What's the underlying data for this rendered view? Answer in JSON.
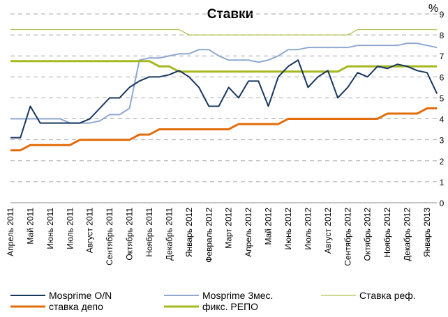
{
  "chart_data": {
    "type": "line",
    "title": "Ставки",
    "y_axis_label": "%",
    "categories": [
      "Апрель 2011",
      null,
      "Май 2011",
      null,
      "Июнь 2011",
      null,
      "Июль 2011",
      null,
      "Август 2011",
      null,
      "Сентябрь 2011",
      null,
      "Октябрь 2011",
      null,
      "Ноябрь 2011",
      null,
      "Декабрь 2011",
      null,
      "Январь 2012",
      null,
      "Февраль 2012",
      null,
      "Март 2012",
      null,
      "Апрель 2012",
      null,
      "Май 2012",
      null,
      "Июнь 2012",
      null,
      "Июль 2012",
      null,
      "Август 2012",
      null,
      "Сентябрь 2012",
      null,
      "Октябрь 2012",
      null,
      "Ноябрь 2012",
      null,
      "Декабрь 2012",
      null,
      "Январь 2013",
      null
    ],
    "series": [
      {
        "name": "Mosprime O/N",
        "color": "#17375e",
        "width": 2,
        "values": [
          3.1,
          3.1,
          4.6,
          3.8,
          3.8,
          3.8,
          3.8,
          3.8,
          4,
          4.5,
          5,
          5,
          5.5,
          5.8,
          6,
          6,
          6.1,
          6.3,
          6,
          5.5,
          4.6,
          4.6,
          5.5,
          5,
          5.8,
          5.8,
          4.6,
          6,
          6.5,
          6.8,
          5.5,
          6,
          6.3,
          5,
          5.5,
          6.2,
          6,
          6.5,
          6.4,
          6.6,
          6.5,
          6.3,
          6.2,
          5.2
        ]
      },
      {
        "name": "Mosprime 3мес.",
        "color": "#8da9ce",
        "width": 2,
        "values": [
          4,
          4,
          4,
          4,
          4,
          4,
          3.8,
          3.8,
          3.8,
          3.9,
          4.2,
          4.2,
          4.5,
          6.8,
          6.9,
          6.9,
          7,
          7.1,
          7.1,
          7.3,
          7.3,
          7,
          6.8,
          6.8,
          6.8,
          6.7,
          6.8,
          7,
          7.3,
          7.3,
          7.4,
          7.4,
          7.4,
          7.4,
          7.4,
          7.5,
          7.5,
          7.5,
          7.5,
          7.5,
          7.6,
          7.6,
          7.5,
          7.4
        ]
      },
      {
        "name": "Ставка реф.",
        "color": "#9ab623",
        "width": 1,
        "values": [
          8.25,
          8.25,
          8.25,
          8.25,
          8.25,
          8.25,
          8.25,
          8.25,
          8.25,
          8.25,
          8.25,
          8.25,
          8.25,
          8.25,
          8.25,
          8.25,
          8.25,
          8.25,
          8,
          8,
          8,
          8,
          8,
          8,
          8,
          8,
          8,
          8,
          8,
          8,
          8,
          8,
          8,
          8,
          8,
          8.25,
          8.25,
          8.25,
          8.25,
          8.25,
          8.25,
          8.25,
          8.25,
          8.25
        ]
      },
      {
        "name": "ставка депо",
        "color": "#e36c0a",
        "width": 3,
        "values": [
          2.5,
          2.5,
          2.75,
          2.75,
          2.75,
          2.75,
          2.75,
          3,
          3,
          3,
          3,
          3,
          3,
          3.25,
          3.25,
          3.5,
          3.5,
          3.5,
          3.5,
          3.5,
          3.5,
          3.5,
          3.5,
          3.75,
          3.75,
          3.75,
          3.75,
          3.75,
          4,
          4,
          4,
          4,
          4,
          4,
          4,
          4,
          4,
          4,
          4.25,
          4.25,
          4.25,
          4.25,
          4.5,
          4.5
        ]
      },
      {
        "name": "фикс. РЕПО",
        "color": "#a5b81e",
        "width": 3,
        "values": [
          6.75,
          6.75,
          6.75,
          6.75,
          6.75,
          6.75,
          6.75,
          6.75,
          6.75,
          6.75,
          6.75,
          6.75,
          6.75,
          6.75,
          6.75,
          6.5,
          6.5,
          6.25,
          6.25,
          6.25,
          6.25,
          6.25,
          6.25,
          6.25,
          6.25,
          6.25,
          6.25,
          6.25,
          6.25,
          6.25,
          6.25,
          6.25,
          6.25,
          6.25,
          6.5,
          6.5,
          6.5,
          6.5,
          6.5,
          6.5,
          6.5,
          6.5,
          6.5,
          6.5
        ]
      }
    ],
    "ylim": [
      0,
      9
    ],
    "yticks": [
      0,
      1,
      2,
      3,
      4,
      5,
      6,
      7,
      8,
      9
    ],
    "grid": true
  }
}
